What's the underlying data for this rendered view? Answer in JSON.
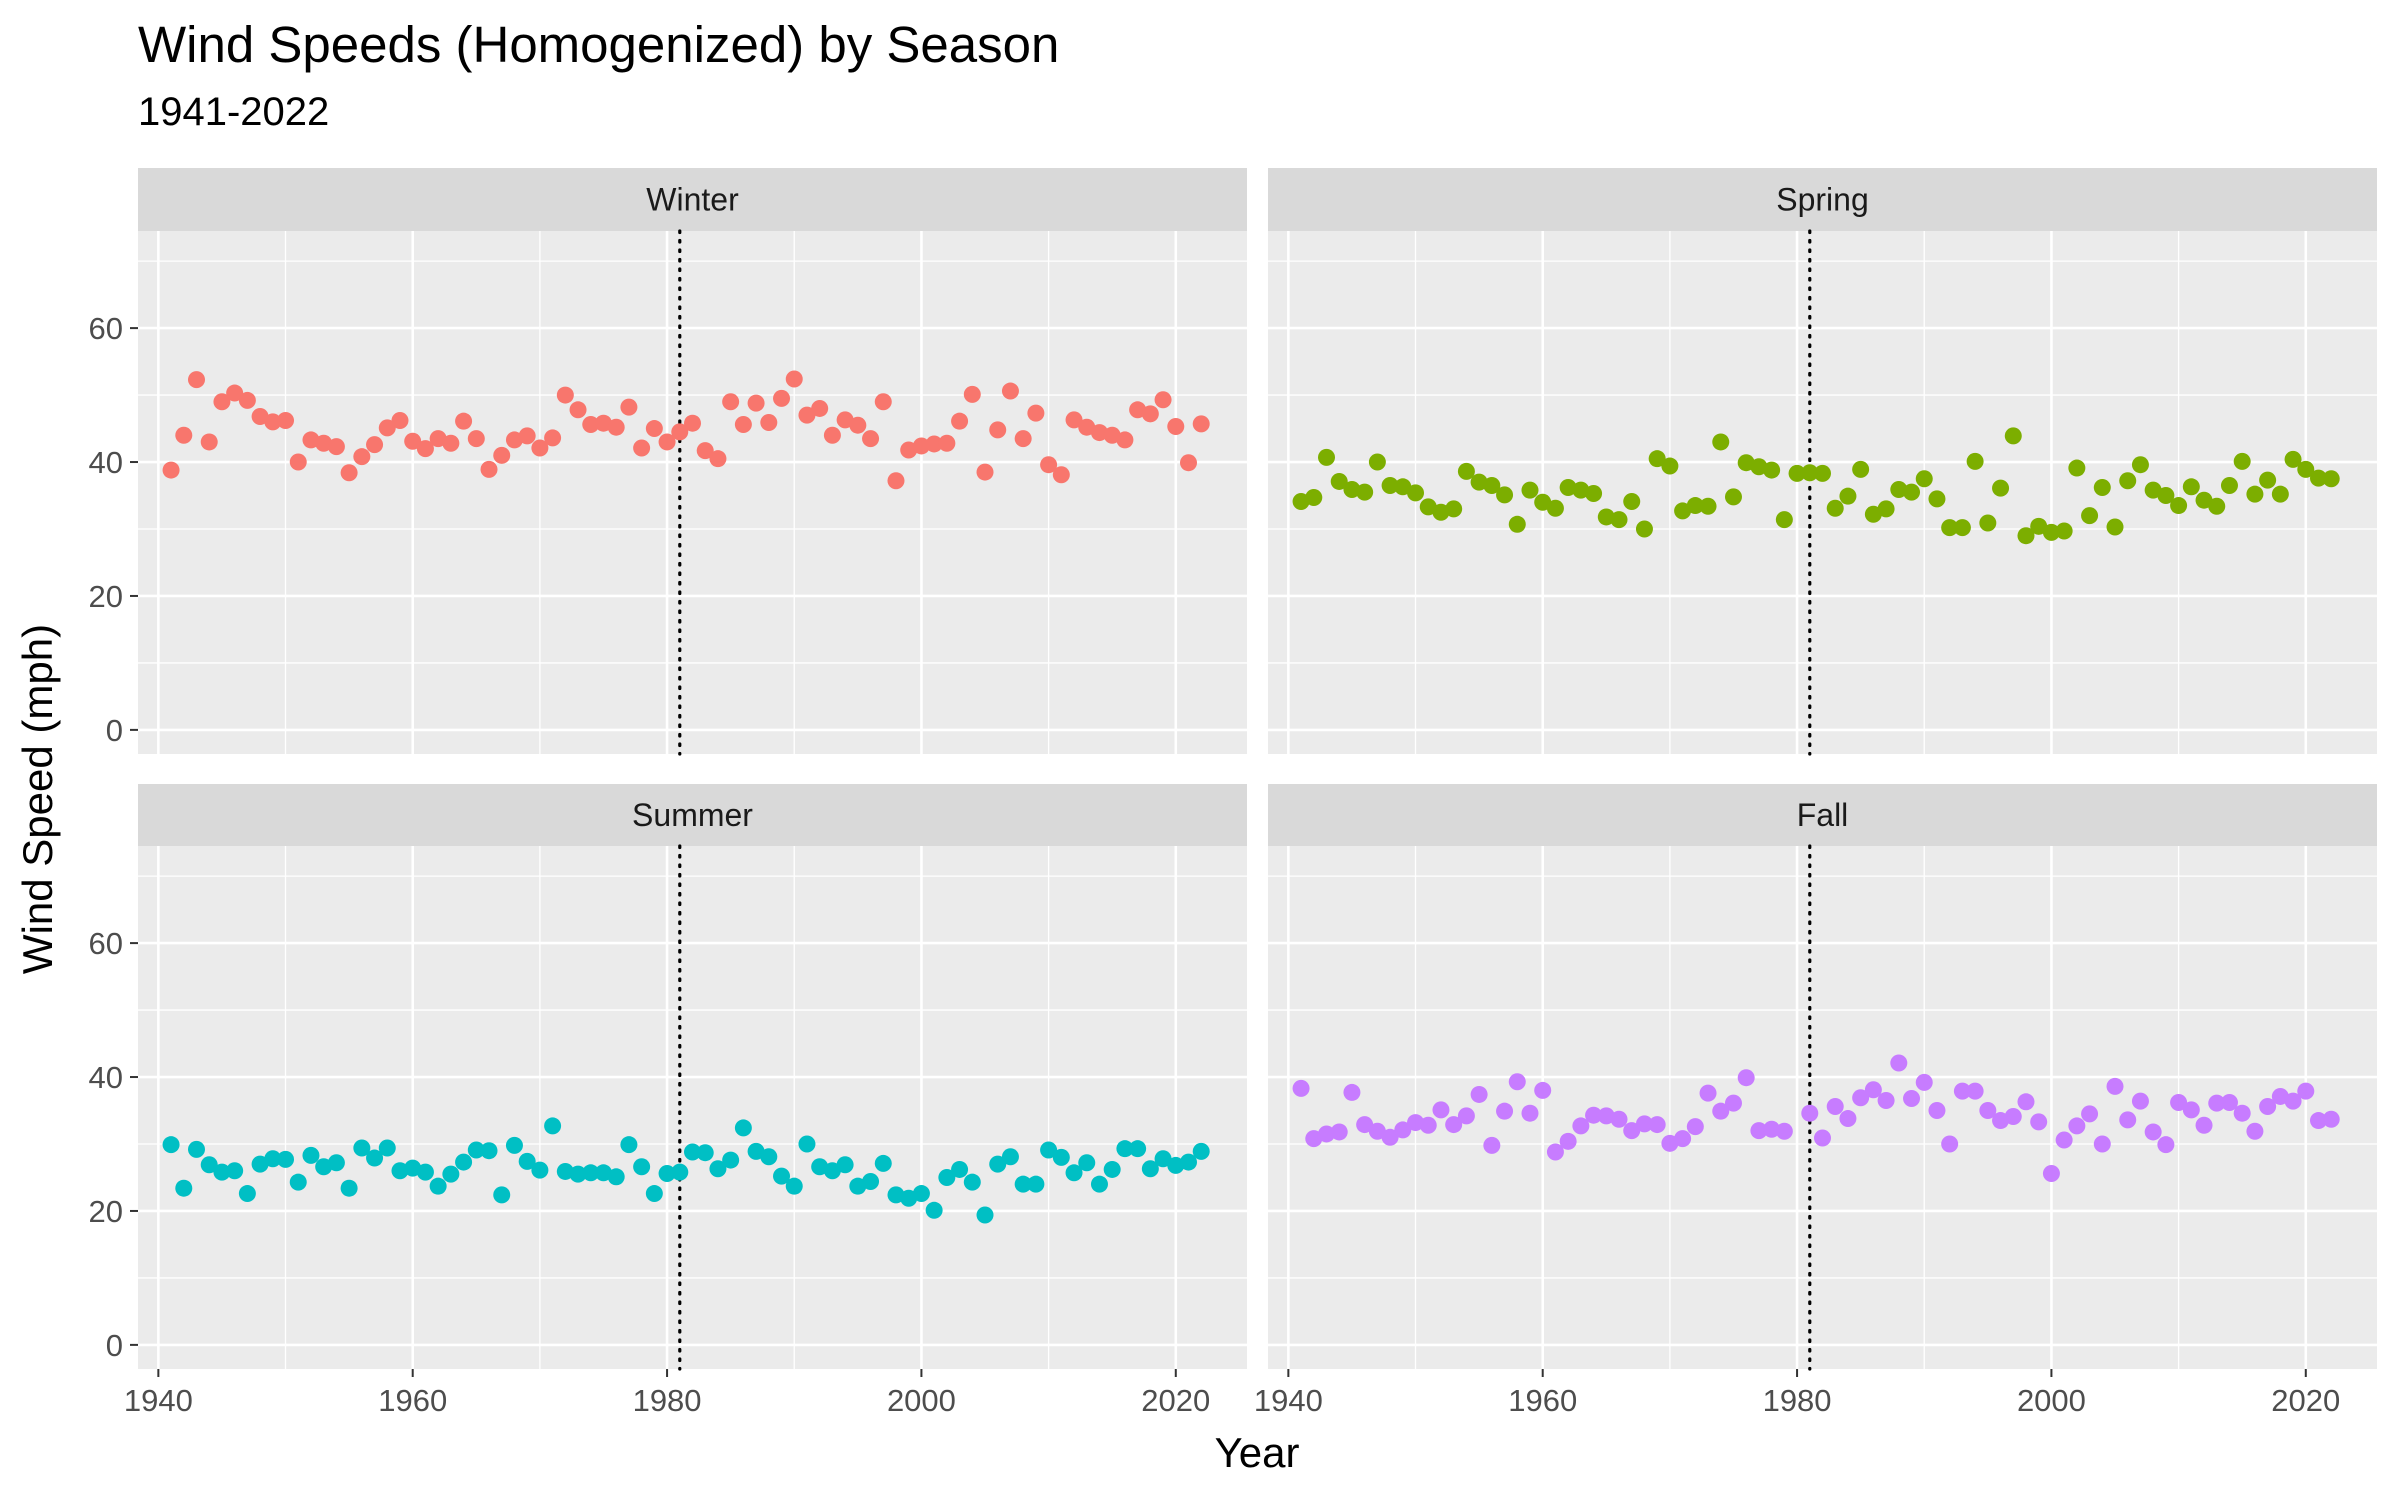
{
  "chart_data": {
    "type": "scatter",
    "title": "Wind Speeds (Homogenized) by Season",
    "subtitle": "1941-2022",
    "xlabel": "Year",
    "ylabel": "Wind Speed (mph)",
    "xlim": [
      1938.4,
      2025.6
    ],
    "ylim": [
      -3.6,
      74.5
    ],
    "xticks": [
      1940,
      1960,
      1980,
      2000,
      2020
    ],
    "yticks": [
      0,
      20,
      40,
      60
    ],
    "reference_line_x": 1981,
    "grid": true,
    "legend": "none",
    "x": [
      1941,
      1942,
      1943,
      1944,
      1945,
      1946,
      1947,
      1948,
      1949,
      1950,
      1951,
      1952,
      1953,
      1954,
      1955,
      1956,
      1957,
      1958,
      1959,
      1960,
      1961,
      1962,
      1963,
      1964,
      1965,
      1966,
      1967,
      1968,
      1969,
      1970,
      1971,
      1972,
      1973,
      1974,
      1975,
      1976,
      1977,
      1978,
      1979,
      1980,
      1981,
      1982,
      1983,
      1984,
      1985,
      1986,
      1987,
      1988,
      1989,
      1990,
      1991,
      1992,
      1993,
      1994,
      1995,
      1996,
      1997,
      1998,
      1999,
      2000,
      2001,
      2002,
      2003,
      2004,
      2005,
      2006,
      2007,
      2008,
      2009,
      2010,
      2011,
      2012,
      2013,
      2014,
      2015,
      2016,
      2017,
      2018,
      2019,
      2020,
      2021,
      2022
    ],
    "panels": [
      {
        "name": "Winter",
        "color": "#F8766D",
        "values": [
          38.8,
          44,
          52.3,
          43,
          49,
          50.3,
          49.2,
          46.8,
          46,
          46.2,
          40,
          43.3,
          42.8,
          42.3,
          38.4,
          40.8,
          42.6,
          45.1,
          46.2,
          43.1,
          42,
          43.5,
          42.8,
          46.1,
          43.5,
          38.9,
          41,
          43.3,
          43.9,
          42.1,
          43.6,
          50,
          47.8,
          45.6,
          45.8,
          45.2,
          48.2,
          42.1,
          45,
          43,
          44.5,
          45.8,
          41.7,
          40.5,
          49,
          45.6,
          48.8,
          45.9,
          49.5,
          52.4,
          47,
          48,
          44,
          46.3,
          45.5,
          43.5,
          49,
          37.2,
          41.8,
          42.4,
          42.7,
          42.8,
          46.1,
          50.1,
          38.5,
          44.8,
          50.6,
          43.5,
          47.3,
          39.6,
          38.1,
          46.3,
          45.2,
          44.4,
          44,
          43.3,
          47.8,
          47.2,
          49.3,
          45.3,
          39.9,
          45.7
        ]
      },
      {
        "name": "Spring",
        "color": "#7CAE00",
        "values": [
          34.1,
          34.7,
          40.7,
          37.1,
          35.9,
          35.5,
          40,
          36.5,
          36.3,
          35.4,
          33.3,
          32.5,
          33,
          38.6,
          37,
          36.5,
          35.1,
          30.7,
          35.8,
          34,
          33.1,
          36.2,
          35.8,
          35.3,
          31.8,
          31.4,
          34.1,
          30,
          40.5,
          39.4,
          32.7,
          33.5,
          33.4,
          43,
          34.8,
          39.9,
          39.3,
          38.8,
          31.4,
          38.3,
          38.4,
          38.3,
          33.1,
          34.9,
          38.9,
          32.2,
          33,
          35.9,
          35.5,
          37.5,
          34.5,
          30.2,
          30.2,
          40.1,
          30.9,
          36.1,
          43.9,
          29,
          30.4,
          29.5,
          29.7,
          39.1,
          32,
          36.2,
          30.3,
          37.2,
          39.6,
          35.8,
          35,
          33.5,
          36.3,
          34.3,
          33.4,
          36.5,
          40.1,
          35.2,
          37.3,
          35.2,
          40.4,
          38.9,
          37.6,
          37.5
        ]
      },
      {
        "name": "Summer",
        "color": "#00BFC4",
        "values": [
          29.9,
          23.4,
          29.2,
          26.9,
          25.8,
          26,
          22.6,
          27,
          27.8,
          27.7,
          24.3,
          28.3,
          26.6,
          27.2,
          23.4,
          29.4,
          27.9,
          29.4,
          26,
          26.4,
          25.8,
          23.7,
          25.5,
          27.3,
          29.1,
          29,
          22.4,
          29.8,
          27.4,
          26.1,
          32.7,
          25.9,
          25.5,
          25.7,
          25.7,
          25.1,
          29.9,
          26.6,
          22.6,
          25.6,
          25.8,
          28.8,
          28.7,
          26.3,
          27.6,
          32.4,
          28.9,
          28.1,
          25.2,
          23.7,
          30,
          26.6,
          26,
          26.9,
          23.7,
          24.4,
          27.1,
          22.4,
          21.9,
          22.6,
          20.1,
          25,
          26.2,
          24.3,
          19.4,
          27,
          28.1,
          24,
          24,
          29.1,
          28,
          25.7,
          27.2,
          24,
          26.2,
          29.3,
          29.3,
          26.3,
          27.8,
          26.8,
          27.3,
          28.9
        ]
      },
      {
        "name": "Fall",
        "color": "#C77CFF",
        "values": [
          38.3,
          30.8,
          31.5,
          31.8,
          37.7,
          32.9,
          31.9,
          31,
          32.1,
          33.2,
          32.8,
          35.1,
          32.9,
          34.2,
          37.4,
          29.8,
          34.9,
          39.3,
          34.6,
          38,
          28.8,
          30.4,
          32.7,
          34.3,
          34.2,
          33.7,
          32,
          33,
          32.9,
          30.1,
          30.8,
          32.6,
          37.6,
          34.9,
          36.1,
          39.9,
          32,
          32.2,
          31.9,
          null,
          34.6,
          30.9,
          35.6,
          33.8,
          36.9,
          38.1,
          36.5,
          42.1,
          36.8,
          39.2,
          35,
          30,
          37.9,
          37.9,
          35,
          33.5,
          34.1,
          36.3,
          33.3,
          25.6,
          30.6,
          32.7,
          34.5,
          30,
          38.6,
          33.6,
          36.4,
          31.8,
          29.9,
          36.2,
          35.1,
          32.8,
          36.1,
          36.2,
          34.6,
          31.9,
          35.6,
          37.1,
          36.4,
          37.9,
          33.5,
          33.7
        ]
      }
    ]
  }
}
